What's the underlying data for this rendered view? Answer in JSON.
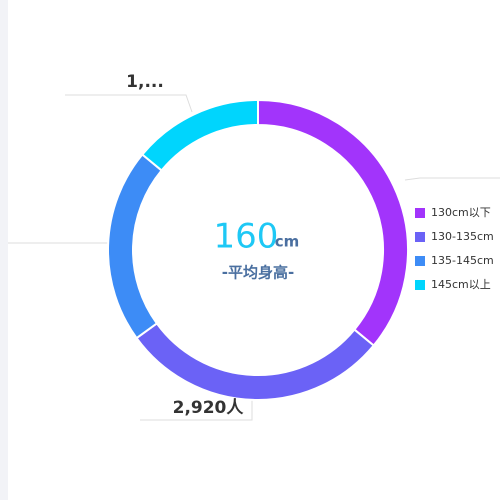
{
  "chart_data": {
    "type": "donut",
    "center_value": "160",
    "center_unit": "cm",
    "center_label": "-平均身高-",
    "categories": [
      "130cm以下",
      "130-135cm",
      "135-145cm",
      "145cm以上"
    ],
    "values": [
      3620,
      2920,
      2110,
      1410
    ],
    "value_labels": [
      null,
      "2,920人",
      null,
      "1,..."
    ],
    "colors": [
      "#a234fb",
      "#6b62f6",
      "#3d8cf6",
      "#00d5fd"
    ],
    "legend": "right"
  }
}
